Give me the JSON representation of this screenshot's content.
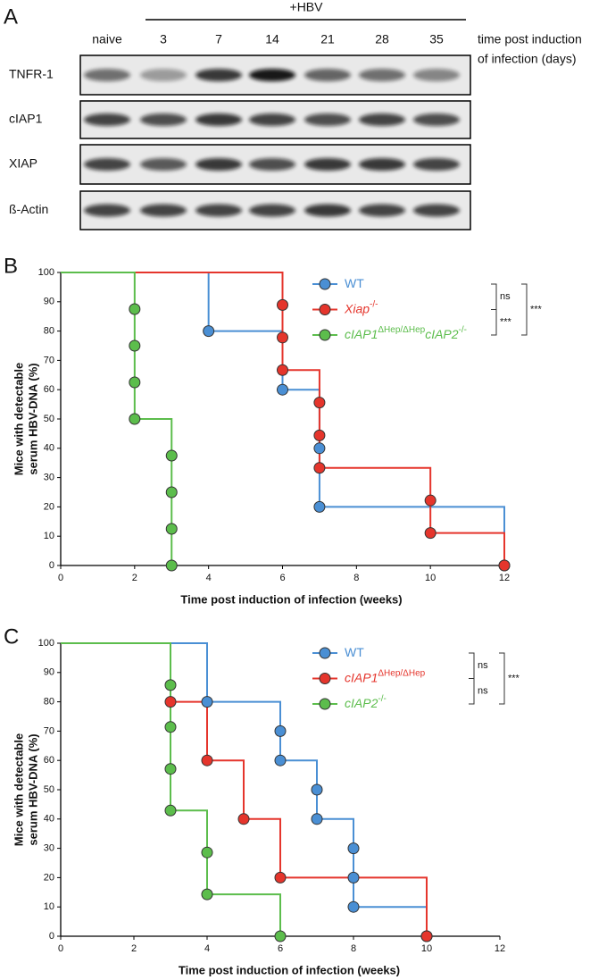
{
  "blot": {
    "label": "A",
    "group_label": "+HBV",
    "lanes": [
      "naive",
      "3",
      "7",
      "14",
      "21",
      "28",
      "35"
    ],
    "lanes_caption": [
      "time post induction",
      "of infection (days)"
    ],
    "rows": [
      "TNFR-1",
      "cIAP1",
      "XIAP",
      "ß-Actin"
    ]
  },
  "chart_data": [
    {
      "type": "step",
      "label": "B",
      "xlabel": "Time post induction of infection (weeks)",
      "ylabel": [
        "Mice with detectable",
        "serum HBV-DNA (%)"
      ],
      "xlim": [
        0,
        12
      ],
      "xticks": [
        0,
        2,
        4,
        6,
        8,
        10,
        12
      ],
      "ylim": [
        0,
        100
      ],
      "yticks": [
        0,
        10,
        20,
        30,
        40,
        50,
        60,
        70,
        80,
        90,
        100
      ],
      "series": [
        {
          "name": [
            "WT"
          ],
          "italic": false,
          "color": "#4a8fd4",
          "x": [
            0,
            4,
            6,
            7,
            7,
            12
          ],
          "values": [
            100,
            80,
            60,
            40,
            20,
            0
          ]
        },
        {
          "name": [
            "Xiap",
            "-/-"
          ],
          "italic": true,
          "color": "#e5352c",
          "x": [
            0,
            6,
            6,
            6,
            7,
            7,
            7,
            10,
            10,
            12
          ],
          "values": [
            100,
            88.9,
            77.8,
            66.7,
            55.6,
            44.4,
            33.3,
            22.2,
            11.1,
            0
          ]
        },
        {
          "name": [
            "cIAP1",
            "ΔHep/ΔHep",
            "cIAP2",
            "-/-"
          ],
          "italic": true,
          "color": "#5cbd4c",
          "x": [
            0,
            2,
            2,
            2,
            2,
            3,
            3,
            3,
            3
          ],
          "values": [
            100,
            87.5,
            75,
            62.5,
            50,
            37.5,
            25,
            12.5,
            0
          ]
        }
      ],
      "comparisons": [
        {
          "label": "ns",
          "series": [
            0,
            1
          ]
        },
        {
          "label": "***",
          "series": [
            1,
            2
          ]
        },
        {
          "label": "***",
          "series": [
            0,
            2
          ]
        }
      ]
    },
    {
      "type": "step",
      "label": "C",
      "xlabel": "Time post induction of infection (weeks)",
      "ylabel": [
        "Mice with detectable",
        "serum HBV-DNA (%)"
      ],
      "xlim": [
        0,
        12
      ],
      "xticks": [
        0,
        2,
        4,
        6,
        8,
        10,
        12
      ],
      "ylim": [
        0,
        100
      ],
      "yticks": [
        0,
        10,
        20,
        30,
        40,
        50,
        60,
        70,
        80,
        90,
        100
      ],
      "series": [
        {
          "name": [
            "WT"
          ],
          "italic": false,
          "color": "#4a8fd4",
          "x": [
            0,
            4,
            6,
            6,
            7,
            7,
            8,
            8,
            8,
            10
          ],
          "values": [
            100,
            80,
            70,
            60,
            50,
            40,
            30,
            20,
            10,
            0
          ]
        },
        {
          "name": [
            "cIAP1",
            "ΔHep/ΔHep"
          ],
          "italic": true,
          "color": "#e5352c",
          "x": [
            0,
            3,
            4,
            5,
            6,
            10
          ],
          "values": [
            100,
            80,
            60,
            40,
            20,
            0
          ]
        },
        {
          "name": [
            "cIAP2",
            "-/-"
          ],
          "italic": true,
          "color": "#5cbd4c",
          "x": [
            0,
            3,
            3,
            3,
            3,
            4,
            4,
            6
          ],
          "values": [
            100,
            85.7,
            71.4,
            57.1,
            42.9,
            28.6,
            14.3,
            0
          ]
        }
      ],
      "comparisons": [
        {
          "label": "ns",
          "series": [
            0,
            1
          ]
        },
        {
          "label": "ns",
          "series": [
            1,
            2
          ]
        },
        {
          "label": "***",
          "series": [
            0,
            2
          ]
        }
      ]
    }
  ]
}
